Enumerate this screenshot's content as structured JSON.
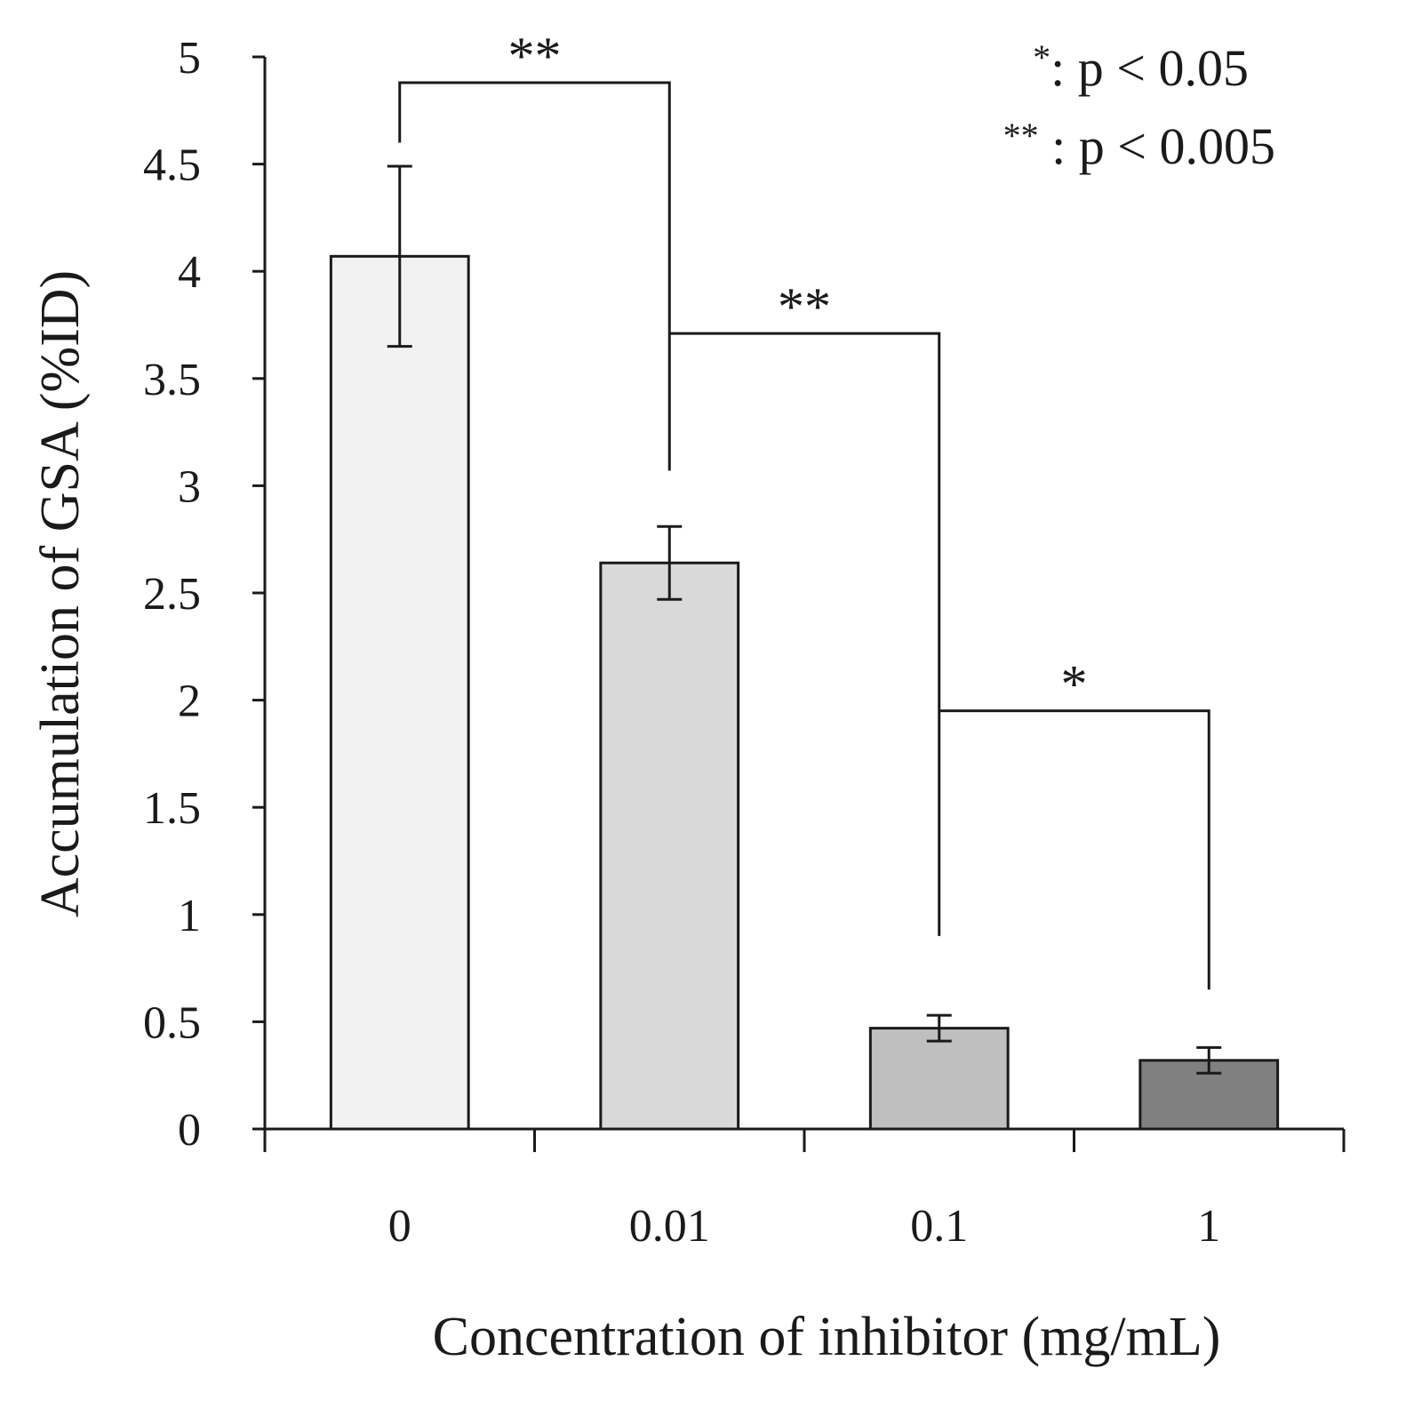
{
  "chart_data": {
    "type": "bar",
    "title": "",
    "xlabel": "Concentration of inhibitor (mg/mL)",
    "ylabel": "Accumulation of GSA (%ID)",
    "categories": [
      "0",
      "0.01",
      "0.1",
      "1"
    ],
    "values": [
      4.07,
      2.64,
      0.47,
      0.32
    ],
    "errors": [
      0.42,
      0.17,
      0.06,
      0.06
    ],
    "bar_colors": [
      "#f2f2f2",
      "#d9d9d9",
      "#bfbfbf",
      "#808080"
    ],
    "ylim": [
      0,
      5
    ],
    "yticks": [
      "0",
      "0.5",
      "1",
      "1.5",
      "2",
      "2.5",
      "3",
      "3.5",
      "4",
      "4.5",
      "5"
    ],
    "grid": false,
    "legend": {
      "placement": "top-right",
      "lines": [
        {
          "stars": "*",
          "text": ": p < 0.05"
        },
        {
          "stars": "**",
          "text": " : p < 0.005"
        }
      ]
    },
    "significance": [
      {
        "from": 0,
        "to": 1,
        "label": "**",
        "bracket_y": 4.88,
        "left_drop_to": 4.6,
        "right_drop_to": 3.07
      },
      {
        "from": 1,
        "to": 2,
        "label": "**",
        "bracket_y": 3.71,
        "left_drop_to": 3.71,
        "right_drop_to": 0.9
      },
      {
        "from": 2,
        "to": 3,
        "label": "*",
        "bracket_y": 1.95,
        "left_drop_to": 1.95,
        "right_drop_to": 0.65
      }
    ]
  }
}
